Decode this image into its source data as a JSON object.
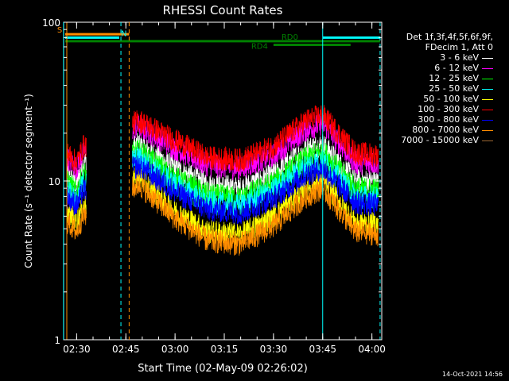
{
  "footer": {
    "timestamp": "14-Oct-2021 14:56"
  },
  "chart_data": {
    "type": "line",
    "title": "RHESSI Count Rates",
    "xlabel": "Start Time (02-May-09 02:26:02)",
    "ylabel": "Count Rate (s⁻¹ detector segment⁻¹)",
    "y_scale": "log",
    "ylim": [
      1,
      100
    ],
    "y_ticks": [
      1,
      10,
      100
    ],
    "y_tick_labels": [
      "1",
      "10",
      "100"
    ],
    "x_range_minutes": [
      "02:26:02",
      "04:03:00"
    ],
    "x_ticks": [
      "02:30",
      "02:45",
      "03:00",
      "03:15",
      "03:30",
      "03:45",
      "04:00"
    ],
    "header": [
      "Det 1f,3f,4f,5f,6f,9f,",
      "FDecim 1, Att 0"
    ],
    "series": [
      {
        "name": "3 - 6 keV",
        "color": "#ffffff",
        "points": [
          [
            "02:27",
            11
          ],
          [
            "02:30",
            9.5
          ],
          [
            "02:32",
            13
          ],
          [
            "02:49",
            17
          ],
          [
            "03:00",
            12
          ],
          [
            "03:10",
            9.5
          ],
          [
            "03:20",
            9
          ],
          [
            "03:30",
            11
          ],
          [
            "03:40",
            16
          ],
          [
            "03:45",
            17
          ],
          [
            "03:55",
            10
          ],
          [
            "04:02",
            10
          ]
        ]
      },
      {
        "name": "6 - 12 keV",
        "color": "#ff00ff",
        "points": [
          [
            "02:27",
            14
          ],
          [
            "02:30",
            12
          ],
          [
            "02:32",
            15
          ],
          [
            "02:49",
            22
          ],
          [
            "03:00",
            16
          ],
          [
            "03:10",
            12.5
          ],
          [
            "03:20",
            12
          ],
          [
            "03:30",
            14.5
          ],
          [
            "03:40",
            21
          ],
          [
            "03:45",
            23
          ],
          [
            "03:55",
            13
          ],
          [
            "04:02",
            13
          ]
        ]
      },
      {
        "name": "12 - 25 keV",
        "color": "#00ff00",
        "points": [
          [
            "02:27",
            10
          ],
          [
            "02:30",
            8.5
          ],
          [
            "02:32",
            11
          ],
          [
            "02:49",
            15.5
          ],
          [
            "03:00",
            10.5
          ],
          [
            "03:10",
            8.2
          ],
          [
            "03:20",
            7.8
          ],
          [
            "03:30",
            9.8
          ],
          [
            "03:40",
            14
          ],
          [
            "03:45",
            15.5
          ],
          [
            "03:55",
            9
          ],
          [
            "04:02",
            8.8
          ]
        ]
      },
      {
        "name": "25 - 50 keV",
        "color": "#00ffff",
        "points": [
          [
            "02:27",
            9
          ],
          [
            "02:30",
            7.5
          ],
          [
            "02:32",
            9.8
          ],
          [
            "02:49",
            14
          ],
          [
            "03:00",
            9.5
          ],
          [
            "03:10",
            7.3
          ],
          [
            "03:20",
            7
          ],
          [
            "03:30",
            8.8
          ],
          [
            "03:40",
            12.5
          ],
          [
            "03:45",
            13.5
          ],
          [
            "03:55",
            8
          ],
          [
            "04:02",
            7.8
          ]
        ]
      },
      {
        "name": "50 - 100 keV",
        "color": "#ffff00",
        "points": [
          [
            "02:27",
            6.5
          ],
          [
            "02:30",
            5.5
          ],
          [
            "02:32",
            7
          ],
          [
            "02:49",
            10.5
          ],
          [
            "03:00",
            6.5
          ],
          [
            "03:10",
            4.8
          ],
          [
            "03:20",
            4.6
          ],
          [
            "03:30",
            6
          ],
          [
            "03:40",
            9
          ],
          [
            "03:45",
            10
          ],
          [
            "03:55",
            5.5
          ],
          [
            "04:02",
            5.3
          ]
        ]
      },
      {
        "name": "100 - 300 keV",
        "color": "#ff0000",
        "points": [
          [
            "02:27",
            15
          ],
          [
            "02:30",
            13
          ],
          [
            "02:32",
            16.5
          ],
          [
            "02:49",
            24
          ],
          [
            "03:00",
            18
          ],
          [
            "03:10",
            14
          ],
          [
            "03:20",
            13.5
          ],
          [
            "03:30",
            16.5
          ],
          [
            "03:40",
            24
          ],
          [
            "03:45",
            26
          ],
          [
            "03:55",
            15
          ],
          [
            "04:02",
            14.5
          ]
        ]
      },
      {
        "name": "300 - 800 keV",
        "color": "#0000ff",
        "points": [
          [
            "02:27",
            8
          ],
          [
            "02:30",
            7
          ],
          [
            "02:32",
            8.7
          ],
          [
            "02:49",
            12.5
          ],
          [
            "03:00",
            8.5
          ],
          [
            "03:10",
            6.6
          ],
          [
            "03:20",
            6.3
          ],
          [
            "03:30",
            7.8
          ],
          [
            "03:40",
            11
          ],
          [
            "03:45",
            12
          ],
          [
            "03:55",
            7.3
          ],
          [
            "04:02",
            7
          ]
        ]
      },
      {
        "name": "800 - 7000 keV",
        "color": "#ff8c00",
        "points": [
          [
            "02:27",
            5.5
          ],
          [
            "02:30",
            4.8
          ],
          [
            "02:32",
            6
          ],
          [
            "02:49",
            9.5
          ],
          [
            "03:00",
            5.8
          ],
          [
            "03:10",
            4.2
          ],
          [
            "03:20",
            4
          ],
          [
            "03:30",
            5.2
          ],
          [
            "03:40",
            8
          ],
          [
            "03:45",
            9
          ],
          [
            "03:55",
            4.8
          ],
          [
            "04:02",
            4.6
          ]
        ]
      },
      {
        "name": "7000 - 15000 keV",
        "color": "#996633",
        "points": []
      }
    ],
    "flags": [
      {
        "label": "S",
        "color": "#ff8c00",
        "from": "02:26:30",
        "to": "02:46:00",
        "level": 84
      },
      {
        "label": "N",
        "color": "#00ffff",
        "from": "02:26:30",
        "to": "02:43:00",
        "level": 80
      },
      {
        "label": "",
        "color": "#00ffff",
        "from": "03:45:00",
        "to": "04:02:30",
        "level": 80
      },
      {
        "label": "RD0",
        "color": "#008000",
        "from": "02:26:30",
        "to": "04:02:30",
        "level": 76
      },
      {
        "label": "RD4",
        "color": "#008000",
        "from": "03:30:00",
        "to": "03:53:30",
        "level": 72
      }
    ],
    "vertical_markers": [
      {
        "time": "02:26:00",
        "color": "#00ffff",
        "style": "solid"
      },
      {
        "time": "02:27:00",
        "color": "#ff8c00",
        "style": "solid"
      },
      {
        "time": "02:43:30",
        "color": "#00ffff",
        "style": "dashed"
      },
      {
        "time": "02:46:00",
        "color": "#ff8c00",
        "style": "dashed"
      },
      {
        "time": "03:45:00",
        "color": "#00ffff",
        "style": "solid"
      },
      {
        "time": "04:02:30",
        "color": "#00ffff",
        "style": "dashed"
      }
    ],
    "data_gap": [
      "02:33:00",
      "02:47:00"
    ],
    "grid": false,
    "legend_position": "right"
  }
}
